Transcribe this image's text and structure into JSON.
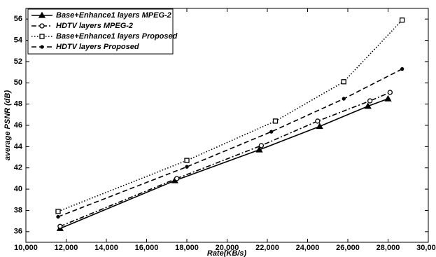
{
  "chart_data": {
    "type": "line",
    "x_label": "Rate(KB/s)",
    "y_label": "average PSNR (dB)",
    "xlim": [
      10000,
      30000
    ],
    "ylim": [
      35,
      57
    ],
    "xticks": [
      {
        "value": 10000,
        "label": "10,000"
      },
      {
        "value": 12000,
        "label": "12,000"
      },
      {
        "value": 14000,
        "label": "14,000"
      },
      {
        "value": 16000,
        "label": "16,000"
      },
      {
        "value": 18000,
        "label": "18,000"
      },
      {
        "value": 20000,
        "label": "20,000"
      },
      {
        "value": 22000,
        "label": "22,000"
      },
      {
        "value": 24000,
        "label": "24,000"
      },
      {
        "value": 26000,
        "label": "26,000"
      },
      {
        "value": 28000,
        "label": "28,000"
      },
      {
        "value": 30000,
        "label": "30,000"
      }
    ],
    "yticks": [
      36,
      38,
      40,
      42,
      44,
      46,
      48,
      50,
      52,
      54,
      56
    ],
    "grid": false,
    "legend_position": "upper-left",
    "series": [
      {
        "name": "Base+Enhance1 layers MPEG-2",
        "color": "#000000",
        "dash": "solid",
        "marker": "triangle",
        "x": [
          11700,
          17400,
          21600,
          24600,
          27000,
          28000
        ],
        "values": [
          36.3,
          40.8,
          43.7,
          45.9,
          47.8,
          48.5
        ]
      },
      {
        "name": "HDTV layers MPEG-2",
        "color": "#000000",
        "dash": "dashdot",
        "marker": "circle",
        "x": [
          11700,
          17500,
          21700,
          24500,
          27100,
          28100
        ],
        "values": [
          36.5,
          41.0,
          44.1,
          46.4,
          48.3,
          49.1
        ]
      },
      {
        "name": "Base+Enhance1 layers Proposed",
        "color": "#000000",
        "dash": "dotted",
        "marker": "square",
        "x": [
          11600,
          18000,
          22400,
          25800,
          28700
        ],
        "values": [
          37.9,
          42.7,
          46.4,
          50.1,
          55.9
        ]
      },
      {
        "name": "HDTV layers Proposed",
        "color": "#000000",
        "dash": "dashed",
        "marker": "dot",
        "x": [
          11600,
          18000,
          22200,
          25800,
          28700
        ],
        "values": [
          37.4,
          42.1,
          45.4,
          48.5,
          51.3
        ]
      }
    ]
  }
}
